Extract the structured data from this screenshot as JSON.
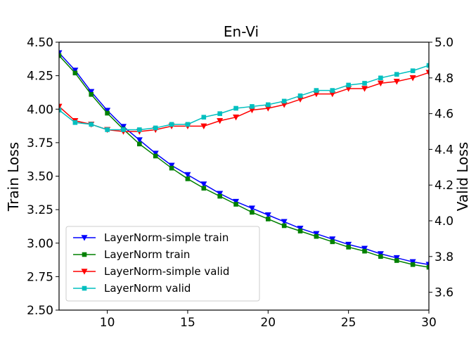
{
  "chart_data": {
    "type": "line",
    "title": "En-Vi",
    "xlabel": "",
    "ylabel_left": "Train Loss",
    "ylabel_right": "Valid Loss",
    "xlim": [
      7,
      30
    ],
    "ylim_left": [
      2.5,
      4.5
    ],
    "ylim_right": [
      3.5,
      5.0
    ],
    "x_ticks": [
      10,
      15,
      20,
      25,
      30
    ],
    "y_ticks_left": [
      "2.50",
      "2.75",
      "3.00",
      "3.25",
      "3.50",
      "3.75",
      "4.00",
      "4.25",
      "4.50"
    ],
    "y_ticks_right": [
      "3.6",
      "3.8",
      "4.0",
      "4.2",
      "4.4",
      "4.6",
      "4.8",
      "5.0"
    ],
    "grid": false,
    "legend_position": "lower-left",
    "x": [
      7,
      8,
      9,
      10,
      11,
      12,
      13,
      14,
      15,
      16,
      17,
      18,
      19,
      20,
      21,
      22,
      23,
      24,
      25,
      26,
      27,
      28,
      29,
      30
    ],
    "series": [
      {
        "name": "LayerNorm-simple train",
        "axis": "left",
        "color": "#0000ff",
        "marker": "triangle-down",
        "values": [
          4.42,
          4.29,
          4.13,
          3.99,
          3.87,
          3.77,
          3.67,
          3.58,
          3.51,
          3.44,
          3.37,
          3.31,
          3.26,
          3.21,
          3.16,
          3.11,
          3.07,
          3.03,
          2.99,
          2.96,
          2.92,
          2.89,
          2.86,
          2.84
        ]
      },
      {
        "name": "LayerNorm train",
        "axis": "left",
        "color": "#008000",
        "marker": "square",
        "values": [
          4.4,
          4.27,
          4.11,
          3.97,
          3.85,
          3.74,
          3.65,
          3.56,
          3.48,
          3.41,
          3.35,
          3.29,
          3.23,
          3.18,
          3.13,
          3.09,
          3.05,
          3.01,
          2.97,
          2.94,
          2.9,
          2.87,
          2.84,
          2.82
        ]
      },
      {
        "name": "LayerNorm-simple valid",
        "axis": "right",
        "color": "#ff0000",
        "marker": "triangle-down",
        "values": [
          4.64,
          4.56,
          4.54,
          4.51,
          4.5,
          4.5,
          4.51,
          4.53,
          4.53,
          4.53,
          4.56,
          4.58,
          4.62,
          4.63,
          4.65,
          4.68,
          4.71,
          4.71,
          4.74,
          4.74,
          4.77,
          4.78,
          4.8,
          4.83
        ]
      },
      {
        "name": "LayerNorm valid",
        "axis": "right",
        "color": "#00bfbf",
        "marker": "square",
        "values": [
          4.62,
          4.55,
          4.54,
          4.51,
          4.51,
          4.51,
          4.52,
          4.54,
          4.54,
          4.58,
          4.6,
          4.63,
          4.64,
          4.65,
          4.67,
          4.7,
          4.73,
          4.73,
          4.76,
          4.77,
          4.8,
          4.82,
          4.84,
          4.87
        ]
      }
    ]
  }
}
